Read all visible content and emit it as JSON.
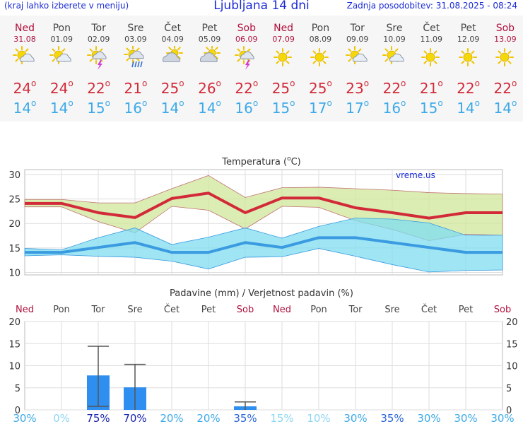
{
  "header": {
    "left_note": "(kraj lahko izberete v meniju)",
    "title": "Ljubljana 14 dni",
    "updated": "Zadnja posodobitev: 31.08.2025 - 08:24"
  },
  "days": [
    {
      "name": "Ned",
      "date": "31.08",
      "weekend": true,
      "icon": "sun-cloud-icon",
      "tmax": "24",
      "tmin": "14"
    },
    {
      "name": "Pon",
      "date": "01.09",
      "weekend": false,
      "icon": "sun-cloud-icon",
      "tmax": "24",
      "tmin": "14"
    },
    {
      "name": "Tor",
      "date": "02.09",
      "weekend": false,
      "icon": "sun-thunder-icon",
      "tmax": "22",
      "tmin": "15"
    },
    {
      "name": "Sre",
      "date": "03.09",
      "weekend": false,
      "icon": "sun-rain-icon",
      "tmax": "21",
      "tmin": "16"
    },
    {
      "name": "Čet",
      "date": "04.09",
      "weekend": false,
      "icon": "cloud-sun-icon",
      "tmax": "25",
      "tmin": "14"
    },
    {
      "name": "Pet",
      "date": "05.09",
      "weekend": false,
      "icon": "cloud-sun-icon",
      "tmax": "26",
      "tmin": "14"
    },
    {
      "name": "Sob",
      "date": "06.09",
      "weekend": true,
      "icon": "sun-thunder-icon",
      "tmax": "22",
      "tmin": "16"
    },
    {
      "name": "Ned",
      "date": "07.09",
      "weekend": true,
      "icon": "sun-icon",
      "tmax": "25",
      "tmin": "15"
    },
    {
      "name": "Pon",
      "date": "08.09",
      "weekend": false,
      "icon": "sun-icon",
      "tmax": "25",
      "tmin": "17"
    },
    {
      "name": "Tor",
      "date": "09.09",
      "weekend": false,
      "icon": "sun-cloud-icon",
      "tmax": "23",
      "tmin": "17"
    },
    {
      "name": "Sre",
      "date": "10.09",
      "weekend": false,
      "icon": "sun-cloud-icon",
      "tmax": "22",
      "tmin": "16"
    },
    {
      "name": "Čet",
      "date": "11.09",
      "weekend": false,
      "icon": "sun-icon",
      "tmax": "21",
      "tmin": "15"
    },
    {
      "name": "Pet",
      "date": "12.09",
      "weekend": false,
      "icon": "sun-icon",
      "tmax": "22",
      "tmin": "14"
    },
    {
      "name": "Sob",
      "date": "13.09",
      "weekend": true,
      "icon": "sun-icon",
      "tmax": "22",
      "tmin": "14"
    }
  ],
  "degree_symbol": "o",
  "chart_data": [
    {
      "type": "line",
      "title": "Temperatura (°C)",
      "title_main": "Temperatura (",
      "title_deg": "o",
      "title_unit": "C)",
      "watermark": "vreme.us",
      "ylim": [
        9.5,
        31
      ],
      "yticks": [
        10,
        15,
        20,
        25,
        30
      ],
      "ytick_labels": [
        "10",
        "15",
        "20",
        "25",
        "30"
      ],
      "x": [
        0,
        1,
        2,
        3,
        4,
        5,
        6,
        7,
        8,
        9,
        10,
        11,
        12,
        13
      ],
      "series": [
        {
          "name": "max",
          "color": "#d22a39",
          "values": [
            24.1,
            24.1,
            22.2,
            21.2,
            25.1,
            26.2,
            22.2,
            25.2,
            25.2,
            23.2,
            22.2,
            21.1,
            22.2,
            22.2
          ]
        },
        {
          "name": "max_upper",
          "color": "#c07070",
          "values": [
            24.9,
            24.9,
            24.2,
            24.2,
            27.1,
            29.8,
            25.3,
            27.3,
            27.4,
            27.1,
            26.8,
            26.3,
            26.1,
            26.0
          ]
        },
        {
          "name": "max_lower",
          "color": "#c07070",
          "values": [
            23.4,
            23.4,
            20.4,
            18.1,
            23.5,
            22.7,
            18.9,
            23.5,
            23.3,
            20.6,
            18.8,
            16.5,
            17.8,
            17.6
          ]
        },
        {
          "name": "min",
          "color": "#3a9be0",
          "values": [
            14.1,
            14.1,
            15.1,
            16.1,
            14.1,
            14.1,
            16.1,
            15.1,
            17.1,
            17.1,
            16.1,
            15.1,
            14.1,
            14.1
          ]
        },
        {
          "name": "min_upper",
          "color": "#3a9be0",
          "values": [
            14.9,
            14.6,
            17.1,
            19.1,
            15.7,
            17.2,
            19.1,
            17.0,
            19.4,
            21.1,
            20.9,
            20.1,
            17.6,
            17.6
          ]
        },
        {
          "name": "min_lower",
          "color": "#3a9be0",
          "values": [
            13.4,
            13.6,
            13.3,
            13.1,
            12.3,
            10.7,
            13.1,
            13.2,
            14.9,
            13.3,
            11.6,
            10.1,
            10.4,
            10.5
          ]
        }
      ]
    },
    {
      "type": "bar",
      "title": "Padavine (mm) / Verjetnost padavin (%)",
      "ylim": [
        0,
        20
      ],
      "yticks": [
        0,
        5,
        10,
        15,
        20
      ],
      "ytick_labels": [
        "0",
        "5",
        "10",
        "15",
        "20"
      ],
      "categories": [
        "Ned",
        "Pon",
        "Tor",
        "Sre",
        "Čet",
        "Pet",
        "Sob",
        "Ned",
        "Pon",
        "Tor",
        "Sre",
        "Čet",
        "Pet",
        "Sob"
      ],
      "weekend": [
        true,
        false,
        false,
        false,
        false,
        false,
        true,
        true,
        false,
        false,
        false,
        false,
        false,
        true
      ],
      "values": [
        0,
        0,
        7.8,
        5.1,
        0,
        0,
        0.8,
        0,
        0,
        0,
        0,
        0,
        0,
        0
      ],
      "err_low": [
        0,
        0,
        0.8,
        0,
        0,
        0,
        0,
        0,
        0,
        0,
        0,
        0,
        0,
        0
      ],
      "err_high": [
        0,
        0,
        14.4,
        10.3,
        0,
        0,
        1.8,
        0,
        0,
        0,
        0,
        0,
        0,
        0
      ],
      "probability_labels": [
        "30%",
        "0%",
        "75%",
        "70%",
        "20%",
        "20%",
        "35%",
        "15%",
        "10%",
        "30%",
        "35%",
        "30%",
        "30%",
        "30%"
      ],
      "probability": [
        30,
        0,
        75,
        70,
        20,
        20,
        35,
        15,
        10,
        30,
        35,
        30,
        30,
        30
      ]
    }
  ]
}
